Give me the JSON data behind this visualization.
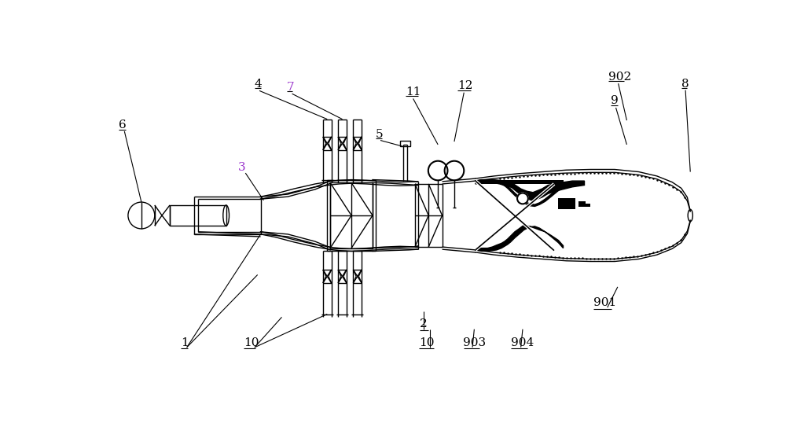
{
  "fig_width": 10.0,
  "fig_height": 5.38,
  "dpi": 100,
  "bg_color": "#ffffff",
  "line_color": "#000000",
  "label_color": "#000000",
  "purple_color": "#9933cc"
}
